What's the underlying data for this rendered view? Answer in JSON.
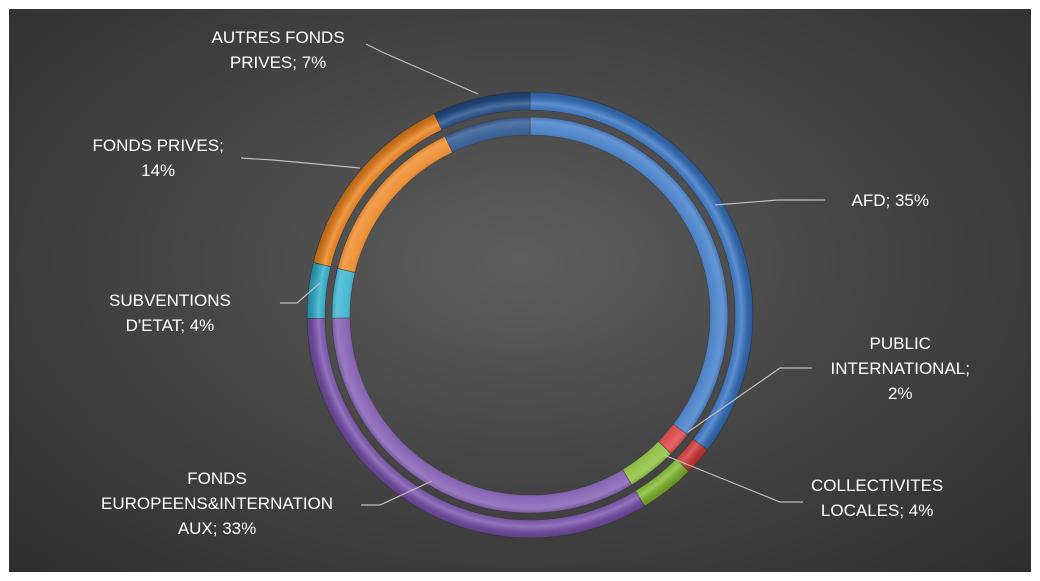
{
  "chart_data": {
    "type": "pie",
    "variant": "double-ring-doughnut",
    "rings": 2,
    "start": "top",
    "direction": "clockwise",
    "slices": [
      {
        "label_lines": [
          "AFD; 35%"
        ],
        "value": 35,
        "color": "#3b78c7"
      },
      {
        "label_lines": [
          "PUBLIC",
          "INTERNATIONAL;",
          "2%"
        ],
        "value": 2,
        "color": "#d83a3a"
      },
      {
        "label_lines": [
          "COLLECTIVITES",
          "LOCALES; 4%"
        ],
        "value": 4,
        "color": "#86bd34"
      },
      {
        "label_lines": [
          "FONDS",
          "EUROPEENS&INTERNATION",
          "AUX; 33%"
        ],
        "value": 33,
        "color": "#7d55b0"
      },
      {
        "label_lines": [
          "SUBVENTIONS",
          "D'ETAT; 4%"
        ],
        "value": 4,
        "color": "#33b2cf"
      },
      {
        "label_lines": [
          "FONDS PRIVES;",
          "14%"
        ],
        "value": 14,
        "color": "#ee8620"
      },
      {
        "label_lines": [
          "AUTRES FONDS",
          "PRIVES; 7%"
        ],
        "value": 7,
        "color": "#234f8c"
      }
    ]
  }
}
